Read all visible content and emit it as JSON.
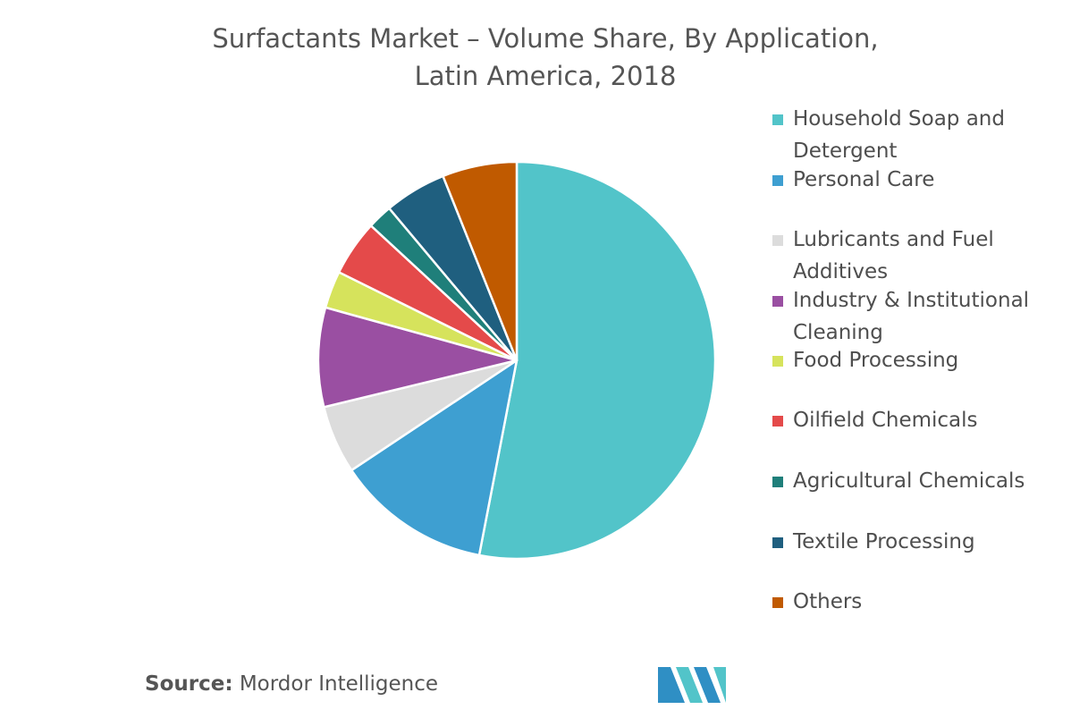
{
  "chart_data": {
    "type": "pie",
    "title_line1": "Surfactants Market – Volume Share, By Application,",
    "title_line2": "Latin America, 2018",
    "slices": [
      {
        "label": "Household Soap and Detergent",
        "value": 52.5,
        "color": "#52c4c9"
      },
      {
        "label": "Personal Care",
        "value": 12.5,
        "color": "#3e9fd1"
      },
      {
        "label": "Lubricants and Fuel Additives",
        "value": 5.5,
        "color": "#dcdcdc"
      },
      {
        "label": "Industry & Institutional Cleaning",
        "value": 8.0,
        "color": "#9a4fa2"
      },
      {
        "label": "Food Processing",
        "value": 3.0,
        "color": "#d6e35c"
      },
      {
        "label": "Oilfield Chemicals",
        "value": 4.5,
        "color": "#e44a4a"
      },
      {
        "label": "Agricultural Chemicals",
        "value": 2.0,
        "color": "#1f7f7a"
      },
      {
        "label": "Textile Processing",
        "value": 5.0,
        "color": "#1f5f7f"
      },
      {
        "label": "Others",
        "value": 6.0,
        "color": "#c05a00"
      }
    ],
    "legend_position": "right"
  },
  "legend": {
    "items": [
      {
        "label": "Household Soap and Detergent",
        "color": "#52c4c9"
      },
      {
        "label": "Personal Care",
        "color": "#3e9fd1"
      },
      {
        "label": "Lubricants and Fuel Additives",
        "color": "#dcdcdc"
      },
      {
        "label": "Industry & Institutional Cleaning",
        "color": "#9a4fa2"
      },
      {
        "label": "Food Processing",
        "color": "#d6e35c"
      },
      {
        "label": "Oilfield Chemicals",
        "color": "#e44a4a"
      },
      {
        "label": "Agricultural Chemicals",
        "color": "#1f7f7a"
      },
      {
        "label": "Textile Processing",
        "color": "#1f5f7f"
      },
      {
        "label": "Others",
        "color": "#c05a00"
      }
    ]
  },
  "footer": {
    "source_key": "Source:",
    "source_value": "Mordor Intelligence",
    "logo_icon": "mordor-intelligence-logo-icon"
  }
}
